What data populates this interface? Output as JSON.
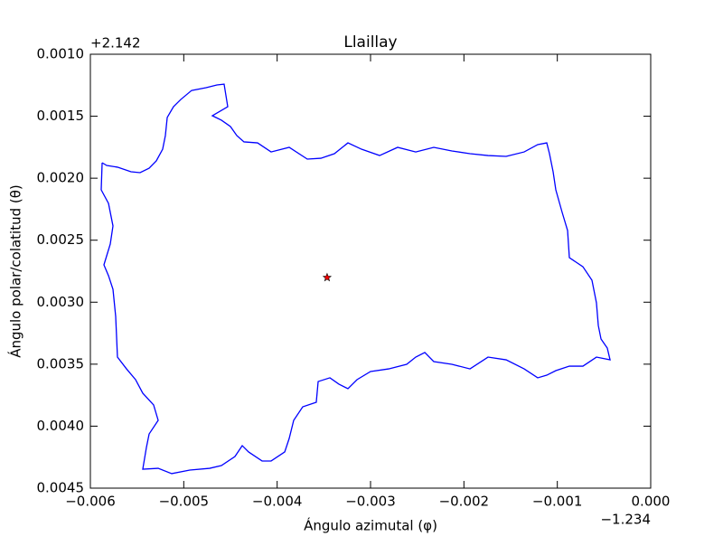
{
  "chart_data": {
    "type": "line",
    "title": "Llaillay",
    "x_label": "Ángulo azimutal (φ)",
    "y_label": "Ángulo polar/colatitud (θ)",
    "x_offset": "−1.234",
    "y_offset": "+2.142",
    "xlim": [
      -0.006,
      0.0
    ],
    "ylim": [
      0.001,
      0.0045
    ],
    "y_inverted": true,
    "xticks": [
      {
        "value": -0.006,
        "label": "−0.006"
      },
      {
        "value": -0.005,
        "label": "−0.005"
      },
      {
        "value": -0.004,
        "label": "−0.004"
      },
      {
        "value": -0.003,
        "label": "−0.003"
      },
      {
        "value": -0.002,
        "label": "−0.002"
      },
      {
        "value": -0.001,
        "label": "−0.001"
      },
      {
        "value": 0.0,
        "label": "0.000"
      }
    ],
    "yticks": [
      {
        "value": 0.001,
        "label": "0.0010"
      },
      {
        "value": 0.0015,
        "label": "0.0015"
      },
      {
        "value": 0.002,
        "label": "0.0020"
      },
      {
        "value": 0.0025,
        "label": "0.0025"
      },
      {
        "value": 0.003,
        "label": "0.0030"
      },
      {
        "value": 0.0035,
        "label": "0.0035"
      },
      {
        "value": 0.004,
        "label": "0.0040"
      },
      {
        "value": 0.0045,
        "label": "0.0045"
      }
    ],
    "line": {
      "color": "#0000ff",
      "x": [
        -0.005874,
        -0.005826,
        -0.00571,
        -0.005565,
        -0.005468,
        -0.005371,
        -0.005294,
        -0.005226,
        -0.005197,
        -0.005177,
        -0.00511,
        -0.005032,
        -0.004916,
        -0.004761,
        -0.004645,
        -0.004568,
        -0.004529,
        -0.004694,
        -0.004597,
        -0.0045,
        -0.004432,
        -0.004355,
        -0.00421,
        -0.004065,
        -0.003871,
        -0.003677,
        -0.003532,
        -0.003387,
        -0.003242,
        -0.003097,
        -0.002903,
        -0.00271,
        -0.002516,
        -0.002323,
        -0.002129,
        -0.001935,
        -0.001742,
        -0.001548,
        -0.001355,
        -0.00121,
        -0.001113,
        -0.001084,
        -0.001045,
        -0.001016,
        -0.000948,
        -0.00089,
        -0.000871,
        -0.000726,
        -0.000629,
        -0.000581,
        -0.000561,
        -0.000532,
        -0.000465,
        -0.000435,
        -0.000581,
        -0.000726,
        -0.000871,
        -0.001016,
        -0.001113,
        -0.00121,
        -0.001355,
        -0.001548,
        -0.001742,
        -0.001935,
        -0.002129,
        -0.002323,
        -0.002419,
        -0.002516,
        -0.002613,
        -0.002806,
        -0.003,
        -0.003145,
        -0.003242,
        -0.003339,
        -0.003435,
        -0.003561,
        -0.003581,
        -0.003726,
        -0.003823,
        -0.003871,
        -0.003919,
        -0.004065,
        -0.004161,
        -0.004306,
        -0.004374,
        -0.004452,
        -0.004597,
        -0.004723,
        -0.004935,
        -0.005129,
        -0.005274,
        -0.005439,
        -0.0054,
        -0.005371,
        -0.005274,
        -0.005323,
        -0.005439,
        -0.005516,
        -0.005613,
        -0.00571,
        -0.005729,
        -0.005758,
        -0.005806,
        -0.005855,
        -0.005787,
        -0.005758,
        -0.005806,
        -0.005884,
        -0.005874
      ],
      "y": [
        0.001875,
        0.001897,
        0.001911,
        0.001948,
        0.001955,
        0.001919,
        0.00186,
        0.001766,
        0.001656,
        0.00151,
        0.001423,
        0.001365,
        0.001292,
        0.00127,
        0.001248,
        0.001241,
        0.001423,
        0.001496,
        0.001532,
        0.001583,
        0.001656,
        0.001707,
        0.001715,
        0.001788,
        0.001751,
        0.001846,
        0.001839,
        0.001802,
        0.001715,
        0.001766,
        0.001817,
        0.001751,
        0.001788,
        0.001751,
        0.00178,
        0.001802,
        0.001817,
        0.001824,
        0.001788,
        0.001729,
        0.001715,
        0.001802,
        0.001948,
        0.002094,
        0.002276,
        0.002422,
        0.002641,
        0.002714,
        0.002823,
        0.003005,
        0.003188,
        0.003297,
        0.00337,
        0.003465,
        0.003443,
        0.003516,
        0.003516,
        0.003552,
        0.003589,
        0.00361,
        0.003538,
        0.003465,
        0.003443,
        0.003538,
        0.003501,
        0.003479,
        0.003406,
        0.003443,
        0.003501,
        0.003538,
        0.003559,
        0.003625,
        0.003698,
        0.003661,
        0.00361,
        0.00364,
        0.003807,
        0.003844,
        0.003953,
        0.004099,
        0.004208,
        0.004281,
        0.004281,
        0.004208,
        0.004157,
        0.004245,
        0.004318,
        0.00434,
        0.004354,
        0.004383,
        0.00434,
        0.004347,
        0.004172,
        0.004063,
        0.003953,
        0.003829,
        0.003734,
        0.003625,
        0.003538,
        0.003443,
        0.003115,
        0.002896,
        0.002786,
        0.002699,
        0.002531,
        0.002385,
        0.002203,
        0.002094,
        0.001875
      ]
    },
    "marker": {
      "x": -0.003465,
      "y": 0.002801,
      "color": "#ff0000",
      "shape": "star"
    }
  }
}
